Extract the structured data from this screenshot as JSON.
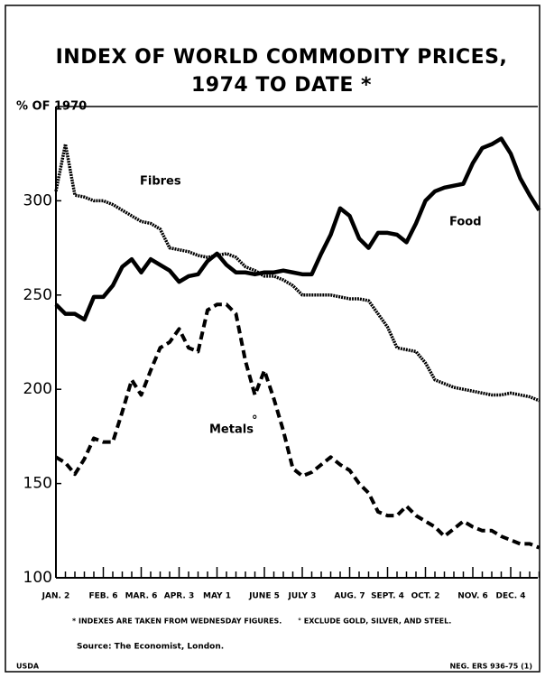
{
  "chart_data": {
    "type": "line",
    "title": [
      "INDEX OF WORLD COMMODITY PRICES,",
      "1974 TO DATE *"
    ],
    "y_label": "% OF 1970",
    "categories": [
      "JAN. 2",
      null,
      null,
      null,
      null,
      "FEB. 6",
      null,
      null,
      null,
      "MAR. 6",
      null,
      null,
      null,
      "APR. 3",
      null,
      null,
      null,
      "MAY 1",
      null,
      null,
      null,
      null,
      "JUNE 5",
      null,
      null,
      null,
      "JULY 3",
      null,
      null,
      null,
      null,
      "AUG. 7",
      null,
      null,
      null,
      "SEPT. 4",
      null,
      null,
      null,
      "OCT. 2",
      null,
      null,
      null,
      null,
      "NOV. 6",
      null,
      null,
      null,
      "DEC. 4",
      null,
      null,
      null
    ],
    "series": [
      {
        "name": "Food",
        "color": "#000000",
        "style": "solid",
        "values": [
          245,
          240,
          240,
          237,
          249,
          249,
          255,
          265,
          269,
          262,
          269,
          266,
          263,
          257,
          260,
          261,
          268,
          272,
          266,
          262,
          262,
          261,
          262,
          262,
          263,
          262,
          261,
          261,
          272,
          282,
          296,
          292,
          280,
          275,
          283,
          283,
          282,
          278,
          288,
          300,
          305,
          307,
          308,
          309,
          320,
          328,
          330,
          333,
          325,
          312,
          303,
          295
        ]
      },
      {
        "name": "Fibres",
        "color": "#000000",
        "style": "dotted",
        "values": [
          305,
          330,
          303,
          302,
          300,
          300,
          298,
          295,
          292,
          289,
          288,
          285,
          275,
          274,
          273,
          271,
          270,
          271,
          272,
          270,
          265,
          263,
          260,
          260,
          258,
          255,
          250,
          250,
          250,
          250,
          249,
          248,
          248,
          247,
          240,
          233,
          222,
          221,
          220,
          214,
          205,
          203,
          201,
          200,
          199,
          198,
          197,
          197,
          198,
          197,
          196,
          194
        ]
      },
      {
        "name": "Metals",
        "color": "#000000",
        "style": "dashed",
        "values": [
          164,
          161,
          155,
          163,
          174,
          172,
          172,
          188,
          205,
          197,
          210,
          222,
          225,
          232,
          222,
          220,
          242,
          245,
          245,
          240,
          215,
          197,
          210,
          195,
          178,
          158,
          154,
          156,
          160,
          164,
          160,
          157,
          150,
          145,
          135,
          133,
          133,
          138,
          133,
          130,
          127,
          122,
          126,
          130,
          127,
          125,
          125,
          122,
          120,
          118,
          118,
          116
        ]
      }
    ],
    "metals_mark": "°",
    "ylim": [
      100,
      350
    ],
    "yticks": [
      100,
      150,
      200,
      250,
      300
    ],
    "footnotes": [
      "* INDEXES ARE TAKEN FROM WEDNESDAY FIGURES.",
      "° EXCLUDE GOLD, SILVER, AND STEEL."
    ],
    "source": "Source: The Economist, London.",
    "agency": "USDA",
    "negative": "NEG. ERS 936-75 (1)"
  }
}
